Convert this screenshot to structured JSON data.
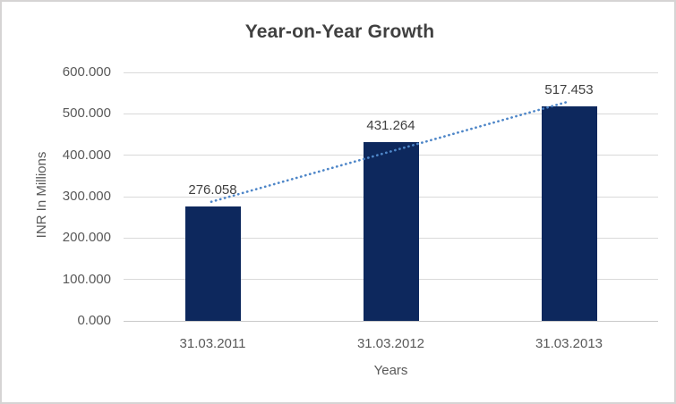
{
  "chart": {
    "title": "Year-on-Year Growth",
    "y_axis_title": "INR In Millions",
    "x_axis_title": "Years"
  },
  "chart_data": {
    "type": "bar",
    "title": "Year-on-Year Growth",
    "xlabel": "Years",
    "ylabel": "INR In Millions",
    "categories": [
      "31.03.2011",
      "31.03.2012",
      "31.03.2013"
    ],
    "values": [
      276.058,
      431.264,
      517.453
    ],
    "data_labels": [
      "276.058",
      "431.264",
      "517.453"
    ],
    "ytick_labels": [
      "0.000",
      "100.000",
      "200.000",
      "300.000",
      "400.000",
      "500.000",
      "600.000"
    ],
    "ylim": [
      0,
      600
    ],
    "ytick_step": 100,
    "grid": true,
    "legend": "none",
    "trendline": {
      "type": "linear",
      "style": "dotted"
    },
    "colors": {
      "bar": "#0d285d",
      "trendline": "#4e86c8",
      "gridline": "#d9d9d9",
      "axis_line": "#c9c9c9",
      "title_text": "#404040",
      "tick_text": "#595959",
      "border": "#d6d4d4"
    }
  }
}
